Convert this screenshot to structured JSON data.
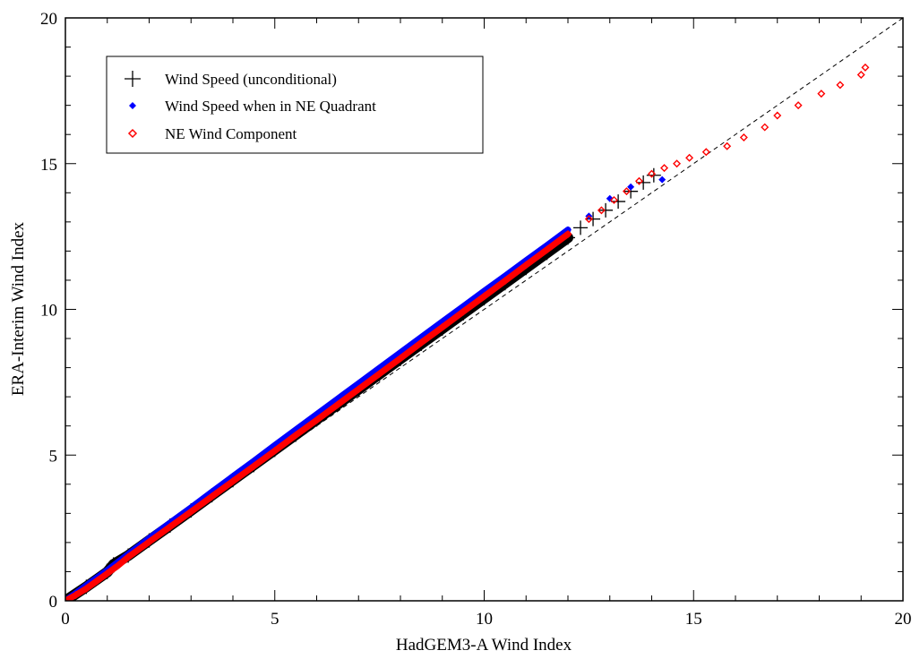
{
  "chart_data": {
    "type": "scatter",
    "title": "",
    "xlabel": "HadGEM3-A Wind Index",
    "ylabel": "ERA-Interim Wind Index",
    "xlim": [
      0,
      20
    ],
    "ylim": [
      0,
      20
    ],
    "xticks": [
      "0",
      "5",
      "10",
      "15",
      "20"
    ],
    "yticks": [
      "0",
      "5",
      "10",
      "15",
      "20"
    ],
    "grid": false,
    "legend_position": "top-left",
    "reference_line": {
      "name": "1:1 line",
      "style": "dashed",
      "color": "#000000",
      "from": [
        0,
        0
      ],
      "to": [
        20,
        20
      ]
    },
    "series": [
      {
        "name": "Wind Speed (unconditional)",
        "marker": "plus",
        "color": "#000000",
        "points": [
          [
            0.0,
            0.0
          ],
          [
            0.5,
            0.48
          ],
          [
            1.0,
            0.99
          ],
          [
            1.15,
            1.25
          ],
          [
            1.5,
            1.55
          ],
          [
            2.0,
            2.07
          ],
          [
            2.5,
            2.58
          ],
          [
            3.0,
            3.1
          ],
          [
            3.5,
            3.62
          ],
          [
            4.0,
            4.14
          ],
          [
            4.5,
            4.66
          ],
          [
            5.0,
            5.18
          ],
          [
            5.5,
            5.7
          ],
          [
            6.0,
            6.22
          ],
          [
            6.5,
            6.74
          ],
          [
            7.0,
            7.26
          ],
          [
            7.5,
            7.78
          ],
          [
            8.0,
            8.3
          ],
          [
            8.5,
            8.82
          ],
          [
            9.0,
            9.34
          ],
          [
            9.5,
            9.86
          ],
          [
            10.0,
            10.38
          ],
          [
            10.5,
            10.9
          ],
          [
            11.0,
            11.42
          ],
          [
            11.5,
            11.94
          ],
          [
            12.0,
            12.46
          ],
          [
            12.3,
            12.8
          ],
          [
            12.6,
            13.1
          ],
          [
            12.9,
            13.4
          ],
          [
            13.2,
            13.7
          ],
          [
            13.5,
            14.05
          ],
          [
            13.8,
            14.35
          ],
          [
            14.05,
            14.6
          ]
        ]
      },
      {
        "name": "Wind Speed when in NE Quadrant",
        "marker": "diamond",
        "color": "#0000ff",
        "points": [
          [
            0.0,
            0.0
          ],
          [
            0.5,
            0.53
          ],
          [
            1.0,
            1.05
          ],
          [
            1.5,
            1.6
          ],
          [
            2.0,
            2.15
          ],
          [
            2.5,
            2.68
          ],
          [
            3.0,
            3.2
          ],
          [
            3.5,
            3.74
          ],
          [
            4.0,
            4.27
          ],
          [
            4.5,
            4.8
          ],
          [
            5.0,
            5.34
          ],
          [
            5.5,
            5.87
          ],
          [
            6.0,
            6.4
          ],
          [
            6.5,
            6.93
          ],
          [
            7.0,
            7.46
          ],
          [
            7.5,
            7.99
          ],
          [
            8.0,
            8.52
          ],
          [
            8.5,
            9.05
          ],
          [
            9.0,
            9.58
          ],
          [
            9.5,
            10.1
          ],
          [
            10.0,
            10.63
          ],
          [
            10.5,
            11.15
          ],
          [
            11.0,
            11.68
          ],
          [
            11.5,
            12.2
          ],
          [
            12.0,
            12.73
          ],
          [
            12.5,
            13.2
          ],
          [
            13.0,
            13.8
          ],
          [
            13.5,
            14.2
          ],
          [
            14.25,
            14.45
          ]
        ]
      },
      {
        "name": "NE Wind Component",
        "marker": "diamond-open",
        "color": "#ff0000",
        "points": [
          [
            0.0,
            0.0
          ],
          [
            0.25,
            0.2
          ],
          [
            0.5,
            0.42
          ],
          [
            0.75,
            0.68
          ],
          [
            1.0,
            0.94
          ],
          [
            1.25,
            1.2
          ],
          [
            1.5,
            1.5
          ],
          [
            2.0,
            2.02
          ],
          [
            2.5,
            2.54
          ],
          [
            3.0,
            3.06
          ],
          [
            3.5,
            3.58
          ],
          [
            4.0,
            4.1
          ],
          [
            4.5,
            4.62
          ],
          [
            5.0,
            5.15
          ],
          [
            5.5,
            5.68
          ],
          [
            6.0,
            6.2
          ],
          [
            6.5,
            6.73
          ],
          [
            7.0,
            7.26
          ],
          [
            7.5,
            7.79
          ],
          [
            8.0,
            8.32
          ],
          [
            8.5,
            8.86
          ],
          [
            9.0,
            9.39
          ],
          [
            9.5,
            9.92
          ],
          [
            10.0,
            10.45
          ],
          [
            10.5,
            10.98
          ],
          [
            11.0,
            11.52
          ],
          [
            11.5,
            12.05
          ],
          [
            12.0,
            12.58
          ],
          [
            12.5,
            13.1
          ],
          [
            12.8,
            13.4
          ],
          [
            13.1,
            13.75
          ],
          [
            13.4,
            14.05
          ],
          [
            13.7,
            14.4
          ],
          [
            14.0,
            14.65
          ],
          [
            14.3,
            14.85
          ],
          [
            14.6,
            15.0
          ],
          [
            14.9,
            15.2
          ],
          [
            15.3,
            15.4
          ],
          [
            15.8,
            15.6
          ],
          [
            16.2,
            15.9
          ],
          [
            16.7,
            16.25
          ],
          [
            17.0,
            16.65
          ],
          [
            17.5,
            17.0
          ],
          [
            18.05,
            17.4
          ],
          [
            18.5,
            17.7
          ],
          [
            19.0,
            18.05
          ],
          [
            19.1,
            18.3
          ]
        ]
      }
    ]
  }
}
